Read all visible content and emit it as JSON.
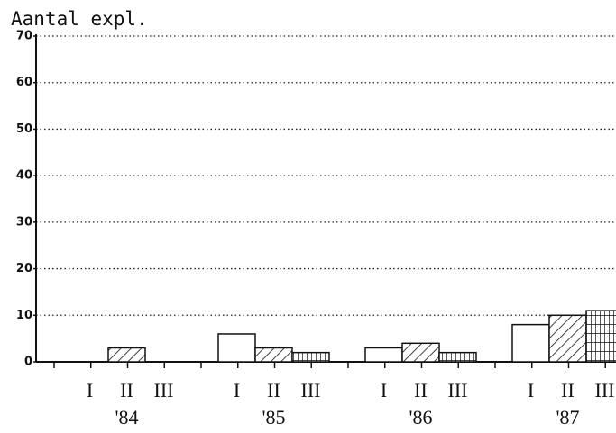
{
  "chart_data": {
    "type": "bar",
    "title": "Aantal expl.",
    "categories": [
      "'84",
      "'85",
      "'86",
      "'87"
    ],
    "series": [
      {
        "name": "I",
        "color": "#ffffff",
        "pattern": "none",
        "values": [
          0,
          6,
          3,
          8
        ]
      },
      {
        "name": "II",
        "color": "#ffffff",
        "pattern": "hatch",
        "values": [
          3,
          3,
          4,
          10
        ]
      },
      {
        "name": "III",
        "color": "#ffffff",
        "pattern": "grid",
        "values": [
          0,
          2,
          2,
          11
        ]
      }
    ],
    "ylim": [
      0,
      70
    ],
    "yticks": [
      0,
      10,
      20,
      30,
      40,
      50,
      60,
      70
    ],
    "grid": true
  }
}
